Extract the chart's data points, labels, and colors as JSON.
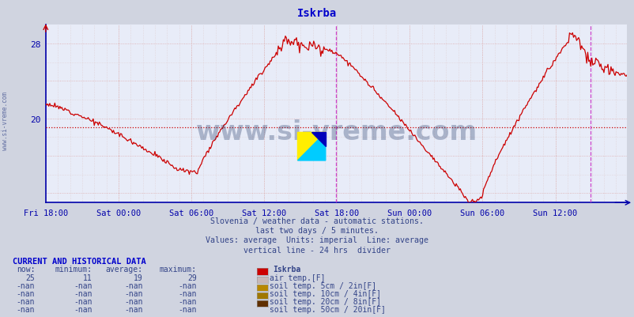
{
  "title": "Iskrba",
  "title_color": "#0000cc",
  "bg_color": "#d0d4e0",
  "plot_bg_color": "#e8ecf8",
  "line_color": "#cc0000",
  "avg_line_color": "#cc0000",
  "avg_line_value": 19.0,
  "vline_color": "#cc44cc",
  "xlabel_color": "#0000aa",
  "ylabel_color": "#0000aa",
  "watermark_color": "#1a3060",
  "watermark_text": "www.si-vreme.com",
  "yticks": [
    20,
    28
  ],
  "ymin": 11,
  "ymax": 30,
  "xlabels": [
    "Fri 18:00",
    "Sat 00:00",
    "Sat 06:00",
    "Sat 12:00",
    "Sat 18:00",
    "Sun 00:00",
    "Sun 06:00",
    "Sun 12:00"
  ],
  "subtitle1": "Slovenia / weather data - automatic stations.",
  "subtitle2": "last two days / 5 minutes.",
  "subtitle3": "Values: average  Units: imperial  Line: average",
  "subtitle4": "vertical line - 24 hrs  divider",
  "subtitle_color": "#334488",
  "current_label": "CURRENT AND HISTORICAL DATA",
  "current_color": "#0000cc",
  "table_header": [
    "now:",
    "minimum:",
    "average:",
    "maximum:",
    "Iskrba"
  ],
  "table_row1": [
    "25",
    "11",
    "19",
    "29",
    "air temp.[F]"
  ],
  "table_row2": [
    "-nan",
    "-nan",
    "-nan",
    "-nan",
    "soil temp. 5cm / 2in[F]"
  ],
  "table_row3": [
    "-nan",
    "-nan",
    "-nan",
    "-nan",
    "soil temp. 10cm / 4in[F]"
  ],
  "table_row4": [
    "-nan",
    "-nan",
    "-nan",
    "-nan",
    "soil temp. 20cm / 8in[F]"
  ],
  "table_row5": [
    "-nan",
    "-nan",
    "-nan",
    "-nan",
    "soil temp. 50cm / 20in[F]"
  ],
  "legend_colors": [
    "#cc0000",
    "#c8b8b8",
    "#b88800",
    "#a07800",
    "#603000"
  ]
}
